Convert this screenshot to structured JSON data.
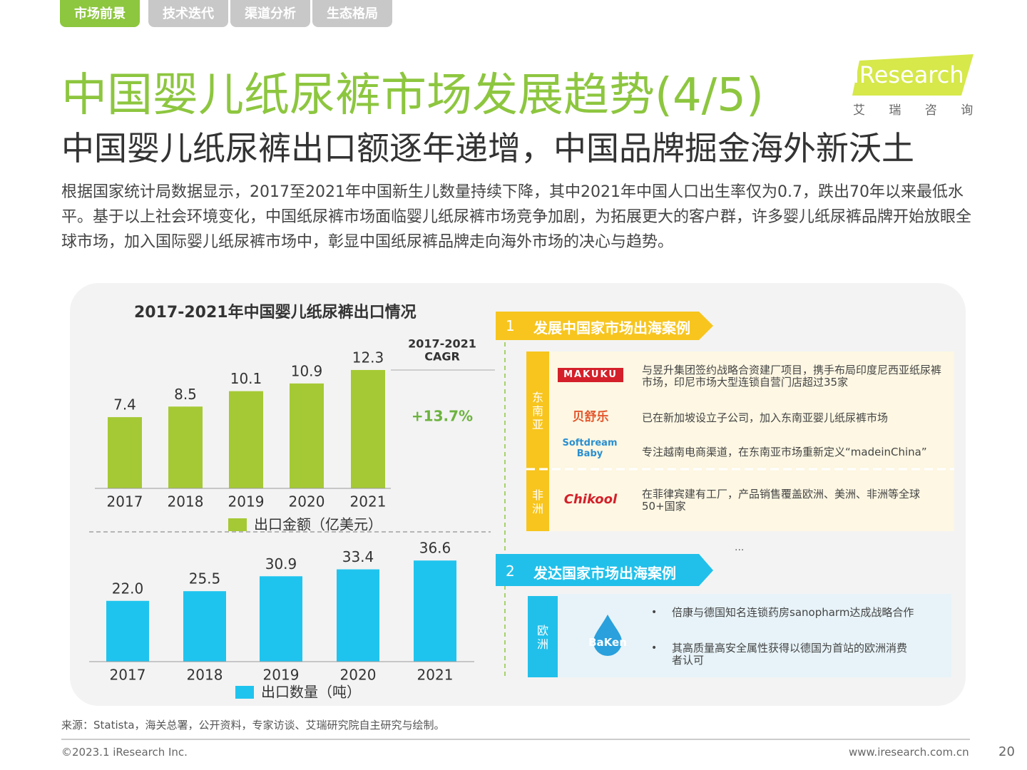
{
  "tabs": [
    "市场前景",
    "技术迭代",
    "渠道分析",
    "生态格局"
  ],
  "title": "中国婴儿纸尿裤市场发展趋势(4/5)",
  "subtitle": "中国婴儿纸尿裤出口额逐年递增，中国品牌掘金海外新沃土",
  "paragraph": "根据国家统计局数据显示，2017至2021年中国新生儿数量持续下降，其中2021年中国人口出生率仅为0.7，跌出70年以来最低水平。基于以上社会环境变化，中国纸尿裤市场面临婴儿纸尿裤市场竞争加剧，为拓展更大的客户群，许多婴儿纸尿裤品牌开始放眼全球市场，加入国际婴儿纸尿裤市场中，彰显中国纸尿裤品牌走向海外市场的决心与趋势。",
  "logo": {
    "name": "iResearch",
    "cn": "艾 瑞 咨 询"
  },
  "chart_title": "2017-2021年中国婴儿纸尿裤出口情况",
  "chart_data": [
    {
      "type": "bar",
      "categories": [
        "2017",
        "2018",
        "2019",
        "2020",
        "2021"
      ],
      "values": [
        7.4,
        8.5,
        10.1,
        10.9,
        12.3
      ],
      "series_name": "出口金额（亿美元）",
      "color": "#a5c934",
      "ylim": [
        0,
        14
      ],
      "cagr_title": [
        "2017-2021",
        "CAGR"
      ],
      "cagr": "+13.7%"
    },
    {
      "type": "bar",
      "categories": [
        "2017",
        "2018",
        "2019",
        "2020",
        "2021"
      ],
      "values": [
        22.0,
        25.5,
        30.9,
        33.4,
        36.6
      ],
      "value_labels": [
        "22.0",
        "25.5",
        "30.9",
        "33.4",
        "36.6"
      ],
      "series_name": "出口数量（吨）",
      "color": "#1fc4ee",
      "ylim": [
        0,
        40
      ]
    }
  ],
  "sections": [
    {
      "number": "1",
      "title": "发展中国家市场出海案例",
      "regions": [
        {
          "name": "东南亚",
          "items": [
            {
              "brand": "MAKUKU",
              "text": "与昱升集团签约战略合资建厂项目，携手布局印度尼西亚纸尿裤市场，印尼市场大型连锁自营门店超过35家"
            },
            {
              "brand": "贝舒乐",
              "text": "已在新加坡设立子公司，加入东南亚婴儿纸尿裤市场"
            },
            {
              "brand": "Softdream Baby",
              "text": "专注越南电商渠道，在东南亚市场重新定义“madeinChina”"
            }
          ]
        },
        {
          "name": "非洲",
          "items": [
            {
              "brand": "Chikool",
              "text": "在菲律宾建有工厂，产品销售覆盖欧洲、美洲、非洲等全球50+国家"
            }
          ]
        }
      ],
      "more": "..."
    },
    {
      "number": "2",
      "title": "发达国家市场出海案例",
      "regions": [
        {
          "name": "欧洲",
          "items": [
            {
              "brand": "BaKen",
              "bullets": [
                "倍康与德国知名连锁药房sanopharm达成战略合作",
                "其高质量高安全属性获得以德国为首站的欧洲消费者认可"
              ]
            }
          ]
        }
      ]
    }
  ],
  "source": "来源：Statista，海关总署，公开资料，专家访谈、艾瑞研究院自主研究与绘制。",
  "copyright": "©2023.1 iResearch Inc.",
  "website": "www.iresearch.com.cn",
  "page": "20"
}
